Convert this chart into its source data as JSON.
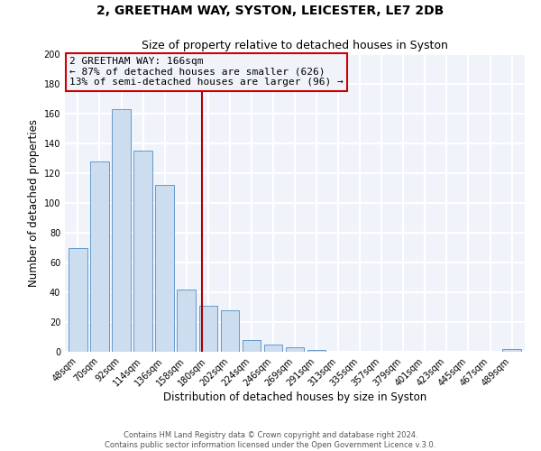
{
  "title": "2, GREETHAM WAY, SYSTON, LEICESTER, LE7 2DB",
  "subtitle": "Size of property relative to detached houses in Syston",
  "xlabel": "Distribution of detached houses by size in Syston",
  "ylabel": "Number of detached properties",
  "bar_color": "#ccddef",
  "bar_edge_color": "#6699cc",
  "categories": [
    "48sqm",
    "70sqm",
    "92sqm",
    "114sqm",
    "136sqm",
    "158sqm",
    "180sqm",
    "202sqm",
    "224sqm",
    "246sqm",
    "269sqm",
    "291sqm",
    "313sqm",
    "335sqm",
    "357sqm",
    "379sqm",
    "401sqm",
    "423sqm",
    "445sqm",
    "467sqm",
    "489sqm"
  ],
  "values": [
    70,
    128,
    163,
    135,
    112,
    42,
    31,
    28,
    8,
    5,
    3,
    1,
    0,
    0,
    0,
    0,
    0,
    0,
    0,
    0,
    2
  ],
  "ylim": [
    0,
    200
  ],
  "yticks": [
    0,
    20,
    40,
    60,
    80,
    100,
    120,
    140,
    160,
    180,
    200
  ],
  "vline_x": 5.72,
  "vline_color": "#aa0000",
  "annotation_title": "2 GREETHAM WAY: 166sqm",
  "annotation_line1": "← 87% of detached houses are smaller (626)",
  "annotation_line2": "13% of semi-detached houses are larger (96) →",
  "annotation_box_color": "#cc0000",
  "footer1": "Contains HM Land Registry data © Crown copyright and database right 2024.",
  "footer2": "Contains public sector information licensed under the Open Government Licence v.3.0.",
  "background_color": "#ffffff",
  "plot_bg_color": "#f0f4fa",
  "grid_color": "#ffffff",
  "title_fontsize": 10,
  "subtitle_fontsize": 9,
  "axis_label_fontsize": 8.5,
  "tick_fontsize": 7
}
